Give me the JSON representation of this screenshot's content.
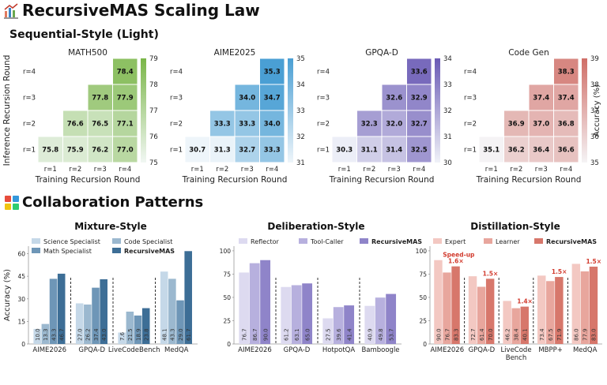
{
  "title": "RecursiveMAS Scaling Law",
  "section1": "Sequential-Style (Light)",
  "section2": "Collaboration Patterns",
  "heatmap_common": {
    "ylabel": "Inference Recursion Round",
    "xlabel": "Training Recursion Round",
    "cbar_label": "Accuracy (%)",
    "x_ticks": [
      "r=1",
      "r=2",
      "r=3",
      "r=4"
    ],
    "y_ticks": [
      "r=4",
      "r=3",
      "r=2",
      "r=1"
    ]
  },
  "chart_data": [
    {
      "type": "heatmap",
      "title": "MATH500",
      "color": "#7ab648",
      "cbar": [
        75,
        79
      ],
      "cbar_ticks": [
        75,
        76,
        77,
        78,
        79
      ],
      "rows": [
        [
          null,
          null,
          null,
          78.4
        ],
        [
          null,
          null,
          77.8,
          77.9
        ],
        [
          null,
          76.6,
          76.5,
          77.1
        ],
        [
          75.8,
          75.9,
          76.2,
          77.0
        ]
      ]
    },
    {
      "type": "heatmap",
      "title": "AIME2025",
      "color": "#4a9fd4",
      "cbar": [
        31,
        35
      ],
      "cbar_ticks": [
        31,
        32,
        33,
        34,
        35
      ],
      "rows": [
        [
          null,
          null,
          null,
          35.3
        ],
        [
          null,
          null,
          34.0,
          34.7
        ],
        [
          null,
          33.3,
          33.3,
          34.0
        ],
        [
          30.7,
          31.3,
          32.7,
          33.3
        ]
      ]
    },
    {
      "type": "heatmap",
      "title": "GPQA-D",
      "color": "#6a5ab5",
      "cbar": [
        30,
        34
      ],
      "cbar_ticks": [
        30,
        31,
        32,
        33,
        34
      ],
      "rows": [
        [
          null,
          null,
          null,
          33.6
        ],
        [
          null,
          null,
          32.6,
          32.9
        ],
        [
          null,
          32.3,
          32.0,
          32.7
        ],
        [
          30.3,
          31.1,
          31.4,
          32.5
        ]
      ]
    },
    {
      "type": "heatmap",
      "title": "Code Gen",
      "color": "#d06e67",
      "cbar": [
        35,
        39
      ],
      "cbar_ticks": [
        35,
        36,
        37,
        38,
        39
      ],
      "rows": [
        [
          null,
          null,
          null,
          38.3
        ],
        [
          null,
          null,
          37.4,
          37.4
        ],
        [
          null,
          36.9,
          37.0,
          36.8
        ],
        [
          35.1,
          36.2,
          36.4,
          36.6
        ]
      ]
    },
    {
      "type": "bar",
      "title": "Mixture-Style",
      "ylabel": "Accuracy (%)",
      "ylim": [
        0,
        65
      ],
      "yticks": [
        0,
        15,
        30,
        45,
        60
      ],
      "categories": [
        "AIME2026",
        "GPQA-D",
        "LiveCodeBench",
        "MedQA"
      ],
      "series": [
        {
          "name": "Science Specialist",
          "color": "#c5d8e8",
          "values": [
            10.0,
            27.0,
            7.6,
            48.1
          ]
        },
        {
          "name": "Code Specialist",
          "color": "#9bb8cf",
          "values": [
            13.3,
            26.2,
            21.5,
            43.3
          ]
        },
        {
          "name": "Math Specialist",
          "color": "#6e96b7",
          "values": [
            43.3,
            37.4,
            18.9,
            29.0
          ]
        },
        {
          "name": "RecursiveMAS",
          "color": "#3d6e96",
          "values": [
            46.7,
            43.0,
            23.8,
            61.7
          ]
        }
      ]
    },
    {
      "type": "bar",
      "title": "Deliberation-Style",
      "ylim": [
        0,
        105
      ],
      "yticks": [
        0,
        25,
        50,
        75,
        100
      ],
      "categories": [
        "AIME2026",
        "GPQA-D",
        "HotpotQA",
        "Bamboogle"
      ],
      "series": [
        {
          "name": "Reflector",
          "color": "#dddaf0",
          "values": [
            76.7,
            61.2,
            27.5,
            40.9
          ]
        },
        {
          "name": "Tool-Caller",
          "color": "#b7b0de",
          "values": [
            86.7,
            63.1,
            39.6,
            49.8
          ]
        },
        {
          "name": "RecursiveMAS",
          "color": "#8f84c9",
          "values": [
            90.0,
            65.0,
            41.4,
            53.7
          ]
        }
      ]
    },
    {
      "type": "bar",
      "title": "Distillation-Style",
      "ylim": [
        0,
        105
      ],
      "yticks": [
        0,
        25,
        50,
        75,
        100
      ],
      "categories": [
        "AIME2026",
        "GPQA-D",
        "LiveCode\nBench",
        "MBPP+",
        "MedQA"
      ],
      "series": [
        {
          "name": "Expert",
          "color": "#f3c8c2",
          "values": [
            90.0,
            72.7,
            46.2,
            73.4,
            86.0
          ]
        },
        {
          "name": "Learner",
          "color": "#e8a69d",
          "values": [
            76.7,
            61.4,
            38.4,
            67.5,
            77.9
          ]
        },
        {
          "name": "RecursiveMAS",
          "color": "#d7776b",
          "values": [
            83.3,
            70.0,
            40.1,
            71.9,
            83.0
          ]
        }
      ],
      "annotations": {
        "speedups": [
          "1.6×",
          "1.5×",
          "1.4×",
          "1.5×",
          "1.5×"
        ],
        "speedup_label": "Speed-up"
      }
    }
  ]
}
